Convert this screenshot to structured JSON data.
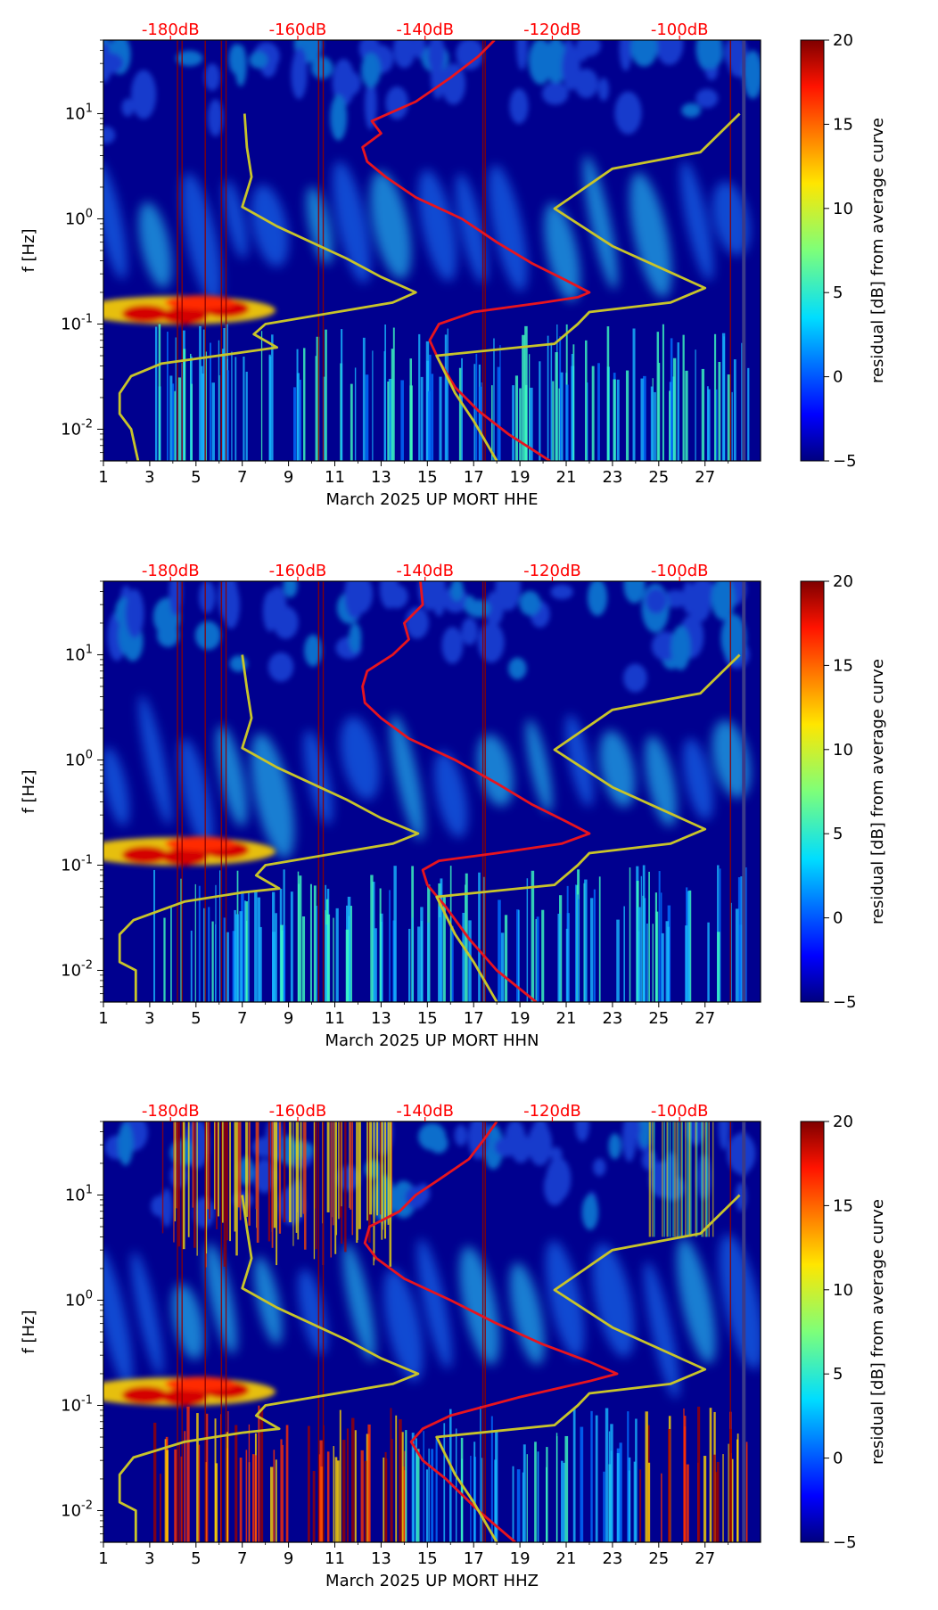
{
  "colors": {
    "spectrogram_background": "#00008f",
    "curve_red": "#e8141e",
    "curve_yellow": "#c8c42a",
    "top_axis_text": "#ff0000"
  },
  "colorbar": {
    "label": "residual [dB] from average curve",
    "ticks": [
      -5,
      0,
      5,
      10,
      15,
      20
    ],
    "range": [
      -5,
      20
    ],
    "colormap": "jet"
  },
  "chart_data": [
    {
      "type": "heatmap",
      "xlabel": "March 2025 UP MORT  HHE",
      "ylabel": "f [Hz]",
      "x_ticks": [
        1,
        3,
        5,
        7,
        9,
        11,
        13,
        15,
        17,
        19,
        21,
        23,
        25,
        27
      ],
      "xlim": [
        1,
        29.4
      ],
      "y_scale": "log",
      "ylim": [
        0.005,
        50
      ],
      "y_ticks": [
        "10^-2",
        "10^-1",
        "10^0",
        "10^1"
      ],
      "top_axis_labels": [
        "-180dB",
        "-160dB",
        "-140dB",
        "-120dB",
        "-100dB"
      ],
      "top_axis_positions": [
        3.9,
        9.4,
        14.9,
        20.4,
        25.9
      ],
      "curves": [
        {
          "color": "red",
          "points": [
            [
              20.3,
              0.005
            ],
            [
              18.5,
              0.009
            ],
            [
              17.2,
              0.015
            ],
            [
              16.2,
              0.025
            ],
            [
              15.5,
              0.045
            ],
            [
              15.1,
              0.07
            ],
            [
              15.5,
              0.1
            ],
            [
              17.0,
              0.13
            ],
            [
              20.0,
              0.16
            ],
            [
              21.5,
              0.18
            ],
            [
              22.0,
              0.2
            ],
            [
              21.0,
              0.26
            ],
            [
              19.5,
              0.38
            ],
            [
              18.0,
              0.6
            ],
            [
              16.5,
              1.0
            ],
            [
              14.5,
              1.6
            ],
            [
              13.2,
              2.5
            ],
            [
              12.4,
              3.5
            ],
            [
              12.2,
              4.8
            ],
            [
              13.0,
              6.5
            ],
            [
              12.6,
              8.5
            ],
            [
              14.5,
              13
            ],
            [
              16.0,
              22
            ],
            [
              17.2,
              35
            ],
            [
              17.9,
              50
            ]
          ]
        },
        {
          "color": "yellow",
          "points": [
            [
              2.5,
              0.005
            ],
            [
              2.2,
              0.01
            ],
            [
              1.7,
              0.014
            ],
            [
              1.7,
              0.022
            ],
            [
              2.2,
              0.032
            ],
            [
              3.5,
              0.042
            ],
            [
              6.8,
              0.053
            ],
            [
              8.5,
              0.06
            ],
            [
              7.5,
              0.08
            ],
            [
              8.0,
              0.1
            ],
            [
              13.5,
              0.16
            ],
            [
              14.5,
              0.2
            ],
            [
              13.0,
              0.28
            ],
            [
              11.5,
              0.42
            ],
            [
              8.5,
              0.85
            ],
            [
              7.0,
              1.3
            ],
            [
              7.4,
              2.5
            ],
            [
              7.2,
              4.8
            ],
            [
              7.1,
              10
            ]
          ]
        },
        {
          "color": "yellow",
          "points": [
            [
              18.0,
              0.005
            ],
            [
              17.0,
              0.012
            ],
            [
              16.2,
              0.022
            ],
            [
              15.4,
              0.05
            ],
            [
              20.5,
              0.065
            ],
            [
              21.5,
              0.1
            ],
            [
              22.0,
              0.13
            ],
            [
              25.5,
              0.16
            ],
            [
              27.0,
              0.22
            ],
            [
              23.0,
              0.55
            ],
            [
              20.5,
              1.25
            ],
            [
              23.0,
              3.0
            ],
            [
              26.8,
              4.3
            ],
            [
              28.5,
              10
            ]
          ]
        }
      ]
    },
    {
      "type": "heatmap",
      "xlabel": "March 2025 UP MORT  HHN",
      "ylabel": "f [Hz]",
      "x_ticks": [
        1,
        3,
        5,
        7,
        9,
        11,
        13,
        15,
        17,
        19,
        21,
        23,
        25,
        27
      ],
      "xlim": [
        1,
        29.4
      ],
      "y_scale": "log",
      "ylim": [
        0.005,
        50
      ],
      "y_ticks": [
        "10^-2",
        "10^-1",
        "10^0",
        "10^1"
      ],
      "top_axis_labels": [
        "-180dB",
        "-160dB",
        "-140dB",
        "-120dB",
        "-100dB"
      ],
      "top_axis_positions": [
        3.9,
        9.4,
        14.9,
        20.4,
        25.9
      ],
      "curves": [
        {
          "color": "red",
          "points": [
            [
              19.7,
              0.005
            ],
            [
              18.0,
              0.01
            ],
            [
              16.8,
              0.02
            ],
            [
              15.8,
              0.04
            ],
            [
              15.0,
              0.065
            ],
            [
              14.8,
              0.09
            ],
            [
              15.5,
              0.11
            ],
            [
              18.0,
              0.13
            ],
            [
              20.8,
              0.16
            ],
            [
              22.0,
              0.2
            ],
            [
              21.0,
              0.26
            ],
            [
              19.5,
              0.38
            ],
            [
              18.0,
              0.6
            ],
            [
              16.2,
              1.0
            ],
            [
              14.2,
              1.6
            ],
            [
              13.0,
              2.5
            ],
            [
              12.3,
              3.5
            ],
            [
              12.2,
              5.0
            ],
            [
              12.4,
              7.0
            ],
            [
              13.5,
              10
            ],
            [
              14.2,
              14
            ],
            [
              14.0,
              20
            ],
            [
              14.8,
              30
            ],
            [
              14.7,
              50
            ]
          ]
        },
        {
          "color": "yellow",
          "points": [
            [
              2.4,
              0.005
            ],
            [
              2.4,
              0.01
            ],
            [
              1.7,
              0.012
            ],
            [
              1.7,
              0.022
            ],
            [
              2.3,
              0.03
            ],
            [
              4.5,
              0.045
            ],
            [
              7.0,
              0.055
            ],
            [
              8.6,
              0.06
            ],
            [
              7.6,
              0.08
            ],
            [
              8.0,
              0.1
            ],
            [
              13.5,
              0.16
            ],
            [
              14.6,
              0.2
            ],
            [
              13.0,
              0.28
            ],
            [
              11.5,
              0.42
            ],
            [
              8.5,
              0.85
            ],
            [
              7.0,
              1.3
            ],
            [
              7.4,
              2.5
            ],
            [
              7.2,
              4.8
            ],
            [
              7.0,
              10
            ]
          ]
        },
        {
          "color": "yellow",
          "points": [
            [
              18.0,
              0.005
            ],
            [
              17.0,
              0.012
            ],
            [
              16.2,
              0.022
            ],
            [
              15.4,
              0.05
            ],
            [
              20.5,
              0.065
            ],
            [
              21.5,
              0.1
            ],
            [
              22.0,
              0.13
            ],
            [
              25.5,
              0.16
            ],
            [
              27.0,
              0.22
            ],
            [
              23.0,
              0.55
            ],
            [
              20.5,
              1.25
            ],
            [
              23.0,
              3.0
            ],
            [
              26.8,
              4.3
            ],
            [
              28.5,
              10
            ]
          ]
        }
      ]
    },
    {
      "type": "heatmap",
      "xlabel": "March 2025 UP MORT  HHZ",
      "ylabel": "f [Hz]",
      "x_ticks": [
        1,
        3,
        5,
        7,
        9,
        11,
        13,
        15,
        17,
        19,
        21,
        23,
        25,
        27
      ],
      "xlim": [
        1,
        29.4
      ],
      "y_scale": "log",
      "ylim": [
        0.005,
        50
      ],
      "y_ticks": [
        "10^-2",
        "10^-1",
        "10^0",
        "10^1"
      ],
      "top_axis_labels": [
        "-180dB",
        "-160dB",
        "-140dB",
        "-120dB",
        "-100dB"
      ],
      "top_axis_positions": [
        3.9,
        9.4,
        14.9,
        20.4,
        25.9
      ],
      "curves": [
        {
          "color": "red",
          "points": [
            [
              18.8,
              0.005
            ],
            [
              17.2,
              0.01
            ],
            [
              15.8,
              0.02
            ],
            [
              14.8,
              0.03
            ],
            [
              14.3,
              0.045
            ],
            [
              14.8,
              0.06
            ],
            [
              16.0,
              0.08
            ],
            [
              19.0,
              0.12
            ],
            [
              22.0,
              0.17
            ],
            [
              23.2,
              0.2
            ],
            [
              22.0,
              0.26
            ],
            [
              20.0,
              0.38
            ],
            [
              18.0,
              0.6
            ],
            [
              16.0,
              1.0
            ],
            [
              14.0,
              1.6
            ],
            [
              12.8,
              2.5
            ],
            [
              12.3,
              3.5
            ],
            [
              12.5,
              5.0
            ],
            [
              13.8,
              7.0
            ],
            [
              14.5,
              10
            ],
            [
              15.5,
              14
            ],
            [
              16.8,
              22
            ],
            [
              17.5,
              35
            ],
            [
              18.0,
              50
            ]
          ]
        },
        {
          "color": "yellow",
          "points": [
            [
              2.4,
              0.005
            ],
            [
              2.4,
              0.01
            ],
            [
              1.7,
              0.012
            ],
            [
              1.7,
              0.022
            ],
            [
              2.3,
              0.032
            ],
            [
              4.5,
              0.045
            ],
            [
              7.0,
              0.055
            ],
            [
              8.6,
              0.06
            ],
            [
              7.6,
              0.08
            ],
            [
              8.0,
              0.1
            ],
            [
              13.5,
              0.16
            ],
            [
              14.6,
              0.2
            ],
            [
              13.0,
              0.28
            ],
            [
              11.5,
              0.42
            ],
            [
              8.5,
              0.85
            ],
            [
              7.0,
              1.3
            ],
            [
              7.4,
              2.5
            ],
            [
              7.2,
              4.8
            ],
            [
              7.0,
              10
            ]
          ]
        },
        {
          "color": "yellow",
          "points": [
            [
              18.0,
              0.005
            ],
            [
              17.0,
              0.012
            ],
            [
              16.2,
              0.022
            ],
            [
              15.4,
              0.05
            ],
            [
              20.5,
              0.065
            ],
            [
              21.5,
              0.1
            ],
            [
              22.0,
              0.13
            ],
            [
              25.5,
              0.16
            ],
            [
              27.0,
              0.22
            ],
            [
              23.0,
              0.55
            ],
            [
              20.5,
              1.25
            ],
            [
              23.0,
              3.0
            ],
            [
              26.8,
              4.3
            ],
            [
              28.5,
              10
            ]
          ]
        }
      ]
    }
  ]
}
